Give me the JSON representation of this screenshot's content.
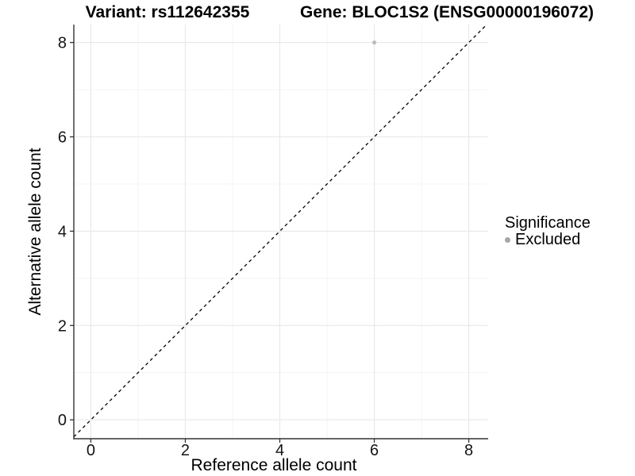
{
  "header": {
    "title_left": "Variant: rs112642355",
    "title_right": "Gene: BLOC1S2 (ENSG00000196072)"
  },
  "chart_data": {
    "type": "scatter",
    "xlabel": "Reference allele count",
    "ylabel": "Alternative allele count",
    "x_ticks": [
      0,
      2,
      4,
      6,
      8
    ],
    "y_ticks": [
      0,
      2,
      4,
      6,
      8
    ],
    "x_minor_ticks": [
      1,
      3,
      5,
      7
    ],
    "y_minor_ticks": [
      1,
      3,
      5,
      7
    ],
    "xlim": [
      -0.36,
      8.41
    ],
    "ylim": [
      -0.4,
      8.38
    ],
    "grid": true,
    "identity_line": {
      "slope": 1,
      "intercept": 0,
      "style": "dashed",
      "color": "#000000"
    },
    "series": [
      {
        "name": "Excluded",
        "color": "#b9bcbc",
        "points": [
          {
            "x": 6,
            "y": 8
          }
        ]
      }
    ],
    "legend": {
      "position": "right",
      "title": "Significance",
      "entries": [
        {
          "label": "Excluded",
          "color": "#a6a6a6"
        }
      ]
    },
    "colors": {
      "grid_major": "#e8e8e8",
      "grid_minor": "#f0f0f0",
      "axis_line": "#333333",
      "tick_text": "#141414"
    }
  }
}
